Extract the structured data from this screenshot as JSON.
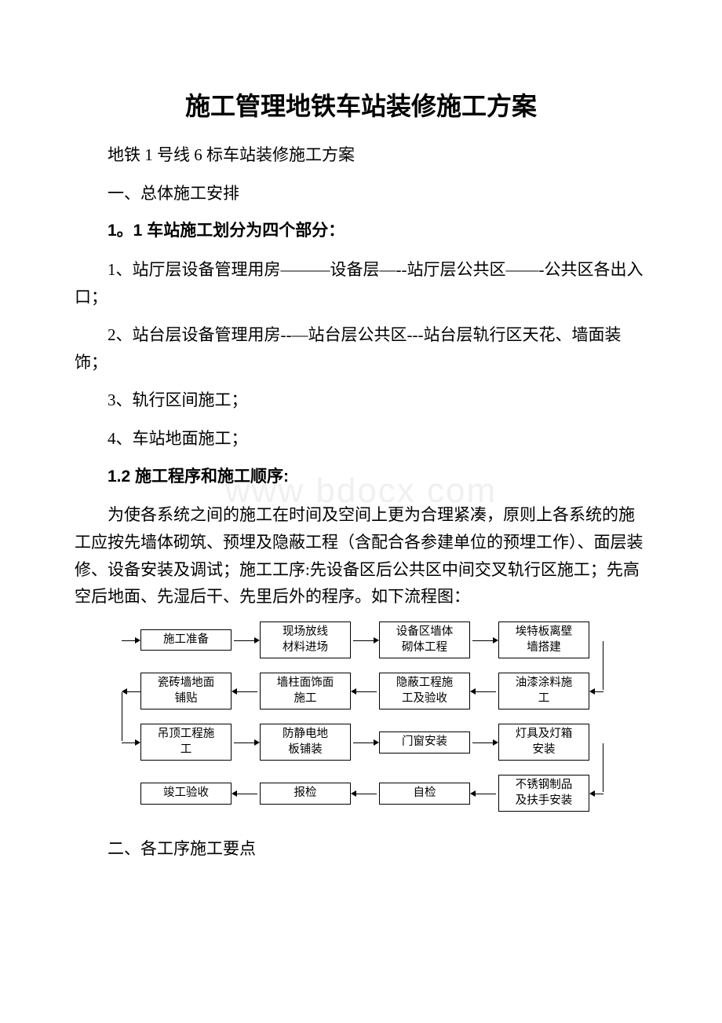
{
  "title": "施工管理地铁车站装修施工方案",
  "watermark": "www bdocx com",
  "p1": "地铁 1 号线 6 标车站装修施工方案",
  "p2": "一、总体施工安排",
  "h1": "1。1 车站施工划分为四个部分：",
  "p3": "1、站厅层设备管理用房———设备层—--站厅层公共区——-公共区各出入口；",
  "p4": "2、站台层设备管理用房--—站台层公共区---站台层轨行区天花、墙面装饰；",
  "p5": "3、轨行区间施工；",
  "p6": "4、车站地面施工；",
  "h2": "1.2 施工程序和施工顺序:",
  "p7": "为使各系统之间的施工在时间及空间上更为合理紧凑，原则上各系统的施工应按先墙体砌筑、预埋及隐蔽工程（含配合各参建单位的预埋工作）、面层装修、设备安装及调试；施工工序:先设备区后公共区中间交叉轨行区施工；先高空后地面、先湿后干、先里后外的程序。如下流程图：",
  "p8": "二、各工序施工要点",
  "flow": {
    "r1": [
      "施工准备",
      "现场放线\n材料进场",
      "设备区墙体\n砌体工程",
      "埃特板离壁\n墙搭建"
    ],
    "r2": [
      "瓷砖墙地面\n铺贴",
      "墙柱面饰面\n施工",
      "隐蔽工程施\n工及验收",
      "油漆涂料施\n工"
    ],
    "r3": [
      "吊顶工程施\n工",
      "防静电地\n板铺装",
      "门窗安装",
      "灯具及灯箱\n安装"
    ],
    "r4": [
      "竣工验收",
      "报检",
      "自检",
      "不锈钢制品\n及扶手安装"
    ]
  }
}
